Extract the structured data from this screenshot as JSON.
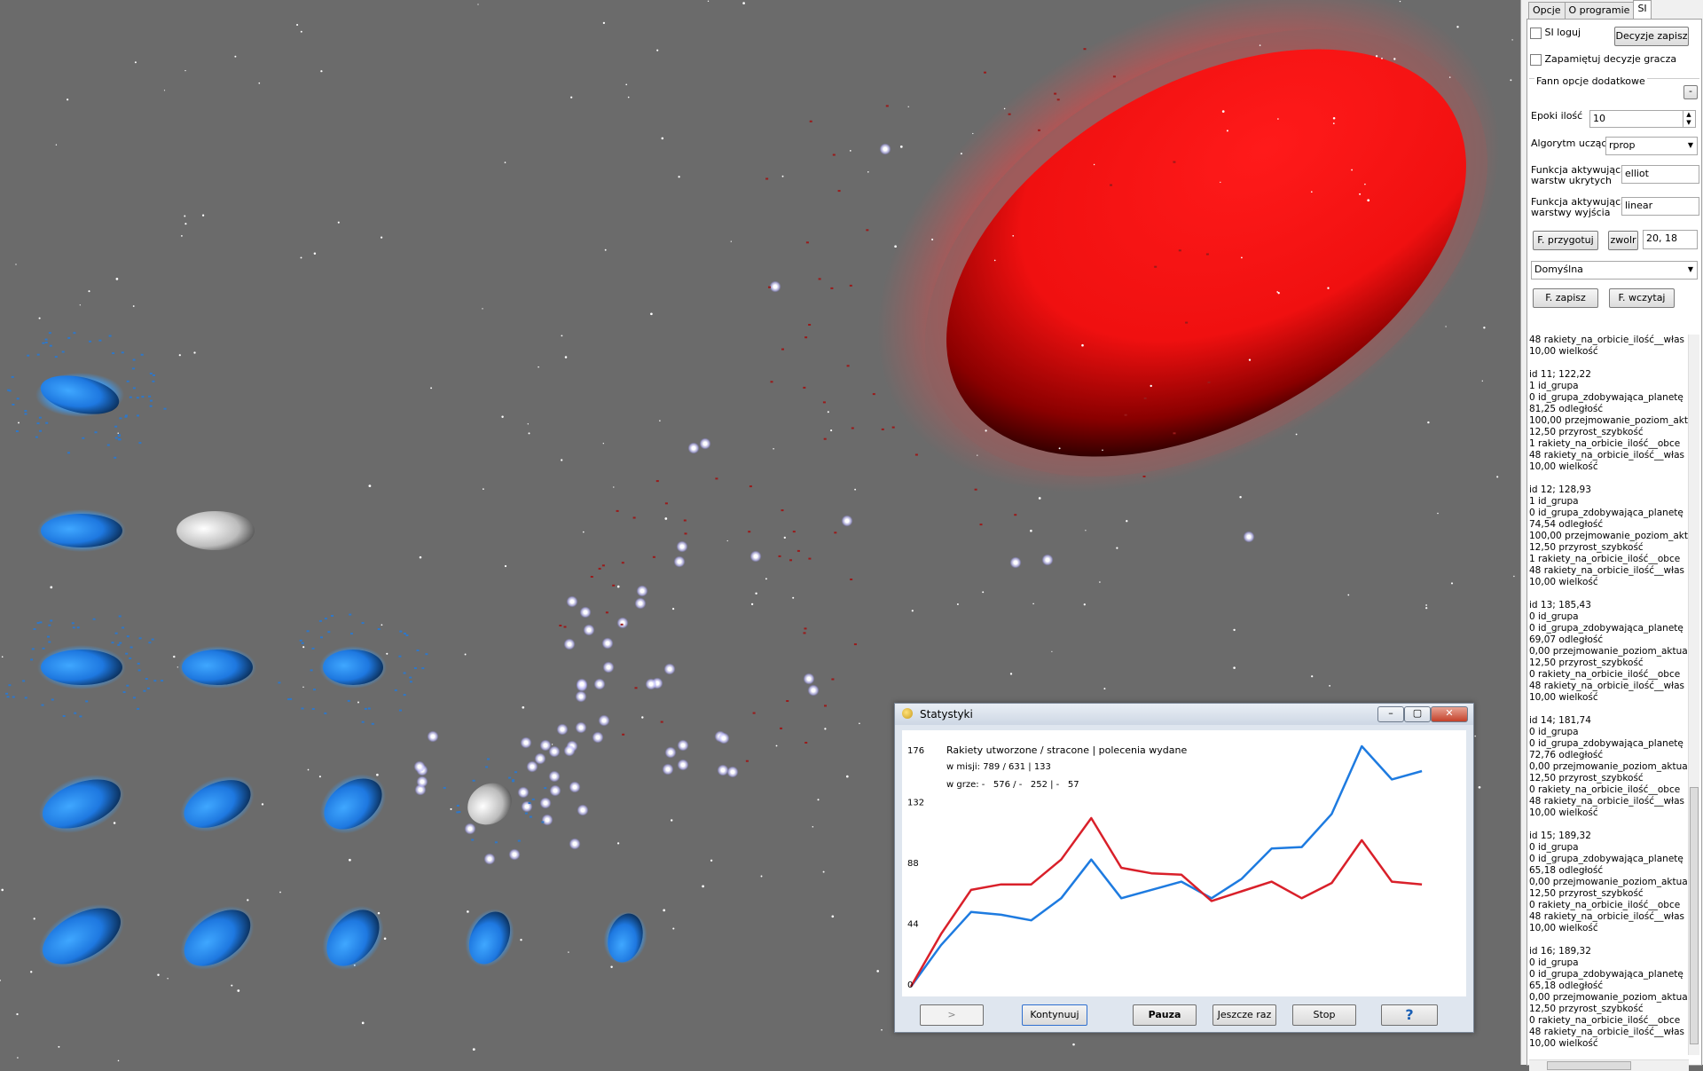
{
  "panel": {
    "tabs": [
      "Opcje",
      "O programie",
      "SI"
    ],
    "active_tab": "SI",
    "si_log_label": "SI loguj",
    "decisions_save_label": "Decyzje zapisz",
    "remember_decisions_label": "Zapamiętuj decyzje gracza",
    "fann_group_label": "Fann opcje dodatkowe",
    "fann_collapse_label": "-",
    "epochs_label": "Epoki ilość",
    "epochs_value": "10",
    "algorithm_label": "Algorytm uczący",
    "algorithm_value": "rprop",
    "hidden_func_label_1": "Funkcja aktywująca",
    "hidden_func_label_2": "warstw ukrytych",
    "hidden_func_value": "elliot",
    "output_func_label_1": "Funkcja aktywująca",
    "output_func_label_2": "warstwy wyjścia",
    "output_func_value": "linear",
    "prepare_label": "F. przygotuj",
    "release_label": "zwolr",
    "layers_value": "20, 18",
    "preset_value": "Domyślna",
    "save_label": "F. zapisz",
    "load_label": "F. wczytaj",
    "entries": [
      [
        "48 rakiety_na_orbicie_ilość__włas",
        "10,00 wielkość"
      ],
      [
        "id 11; 122,22",
        "1 id_grupa",
        "0 id_grupa_zdobywająca_planetę",
        "81,25 odległość",
        "100,00 przejmowanie_poziom_akt",
        "12,50 przyrost_szybkość",
        "1 rakiety_na_orbicie_ilość__obce",
        "48 rakiety_na_orbicie_ilość__włas",
        "10,00 wielkość"
      ],
      [
        "id 12; 128,93",
        "1 id_grupa",
        "0 id_grupa_zdobywająca_planetę",
        "74,54 odległość",
        "100,00 przejmowanie_poziom_akt",
        "12,50 przyrost_szybkość",
        "1 rakiety_na_orbicie_ilość__obce",
        "48 rakiety_na_orbicie_ilość__włas",
        "10,00 wielkość"
      ],
      [
        "id 13; 185,43",
        "0 id_grupa",
        "0 id_grupa_zdobywająca_planetę",
        "69,07 odległość",
        "0,00 przejmowanie_poziom_aktua",
        "12,50 przyrost_szybkość",
        "0 rakiety_na_orbicie_ilość__obce",
        "48 rakiety_na_orbicie_ilość__włas",
        "10,00 wielkość"
      ],
      [
        "id 14; 181,74",
        "0 id_grupa",
        "0 id_grupa_zdobywająca_planetę",
        "72,76 odległość",
        "0,00 przejmowanie_poziom_aktua",
        "12,50 przyrost_szybkość",
        "0 rakiety_na_orbicie_ilość__obce",
        "48 rakiety_na_orbicie_ilość__włas",
        "10,00 wielkość"
      ],
      [
        "id 15; 189,32",
        "0 id_grupa",
        "0 id_grupa_zdobywająca_planetę",
        "65,18 odległość",
        "0,00 przejmowanie_poziom_aktua",
        "12,50 przyrost_szybkość",
        "0 rakiety_na_orbicie_ilość__obce",
        "48 rakiety_na_orbicie_ilość__włas",
        "10,00 wielkość"
      ],
      [
        "id 16; 189,32",
        "0 id_grupa",
        "0 id_grupa_zdobywająca_planetę",
        "65,18 odległość",
        "0,00 przejmowanie_poziom_aktua",
        "12,50 przyrost_szybkość",
        "0 rakiety_na_orbicie_ilość__obce",
        "48 rakiety_na_orbicie_ilość__włas",
        "10,00 wielkość"
      ]
    ]
  },
  "stats": {
    "title": "Statystyki",
    "line1": "Rakiety utworzone / stracone | polecenia wydane",
    "line2": "w misji: 789 / 631 | 133",
    "line3": "w grze: -   576 / -   252 | -   57",
    "buttons": {
      "next": ">",
      "continue": "Kontynuuj",
      "pause": "Pauza",
      "again": "Jeszcze raz",
      "stop": "Stop",
      "help": "?"
    },
    "colors": {
      "blue": "#1e7be0",
      "red": "#d9202a"
    }
  },
  "chart_data": {
    "type": "line",
    "title": "",
    "xlabel": "",
    "ylabel": "",
    "ylim": [
      0,
      176
    ],
    "yticks": [
      0,
      44,
      88,
      132,
      176
    ],
    "x": [
      0,
      1,
      2,
      3,
      4,
      5,
      6,
      7,
      8,
      9,
      10,
      11,
      12,
      13,
      14,
      15,
      16,
      17,
      18
    ],
    "series": [
      {
        "color": "blue",
        "values": [
          2,
          32,
          56,
          54,
          50,
          66,
          94,
          66,
          72,
          78,
          66,
          80,
          102,
          103,
          127,
          176,
          152,
          158,
          null
        ]
      },
      {
        "color": "red",
        "values": [
          2,
          40,
          72,
          76,
          76,
          94,
          124,
          88,
          84,
          83,
          64,
          71,
          78,
          66,
          77,
          108,
          78,
          76,
          null
        ]
      }
    ]
  }
}
